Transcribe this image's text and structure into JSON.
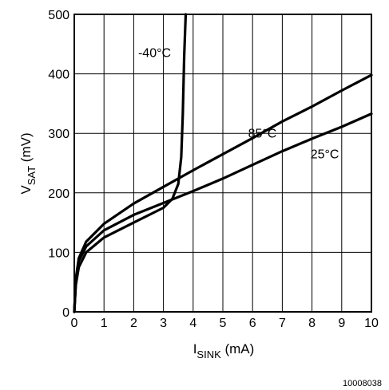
{
  "chart_data": {
    "type": "line",
    "title": "",
    "xlabel": {
      "main": "I",
      "sub": "SINK",
      "suffix": " (mA)"
    },
    "ylabel": {
      "main": "V",
      "sub": "SAT",
      "suffix": " (mV)"
    },
    "xlim": [
      0,
      10
    ],
    "ylim": [
      0,
      500
    ],
    "xticks": [
      0,
      1,
      2,
      3,
      4,
      5,
      6,
      7,
      8,
      9,
      10
    ],
    "yticks": [
      0,
      100,
      200,
      300,
      400,
      500
    ],
    "xtick_labels": [
      "0",
      "1",
      "2",
      "3",
      "4",
      "5",
      "6",
      "7",
      "8",
      "9",
      "10"
    ],
    "ytick_labels": [
      "0",
      "100",
      "200",
      "300",
      "400",
      "500"
    ],
    "grid": true,
    "series": [
      {
        "name": "-40°C",
        "points": [
          [
            0,
            0
          ],
          [
            0.05,
            45
          ],
          [
            0.15,
            75
          ],
          [
            0.4,
            100
          ],
          [
            1,
            125
          ],
          [
            2,
            150
          ],
          [
            3,
            175
          ],
          [
            3.3,
            190
          ],
          [
            3.5,
            215
          ],
          [
            3.6,
            260
          ],
          [
            3.65,
            330
          ],
          [
            3.7,
            430
          ],
          [
            3.75,
            500
          ]
        ]
      },
      {
        "name": "85°C",
        "points": [
          [
            0,
            0
          ],
          [
            0.05,
            55
          ],
          [
            0.15,
            90
          ],
          [
            0.4,
            118
          ],
          [
            1,
            148
          ],
          [
            2,
            182
          ],
          [
            3,
            210
          ],
          [
            4,
            238
          ],
          [
            5,
            265
          ],
          [
            6,
            292
          ],
          [
            7,
            320
          ],
          [
            8,
            345
          ],
          [
            9,
            372
          ],
          [
            10,
            398
          ]
        ]
      },
      {
        "name": "25°C",
        "points": [
          [
            0,
            0
          ],
          [
            0.05,
            50
          ],
          [
            0.15,
            85
          ],
          [
            0.4,
            110
          ],
          [
            1,
            137
          ],
          [
            2,
            163
          ],
          [
            3,
            183
          ],
          [
            4,
            203
          ],
          [
            5,
            224
          ],
          [
            6,
            247
          ],
          [
            7,
            270
          ],
          [
            8,
            291
          ],
          [
            9,
            311
          ],
          [
            10,
            333
          ]
        ]
      }
    ],
    "series_labels": [
      {
        "text": "-40°C",
        "x": 2.15,
        "y": 428
      },
      {
        "text": "85°C",
        "x": 5.85,
        "y": 293
      },
      {
        "text": "25°C",
        "x": 7.95,
        "y": 258
      }
    ]
  },
  "figure_id": "10008038"
}
